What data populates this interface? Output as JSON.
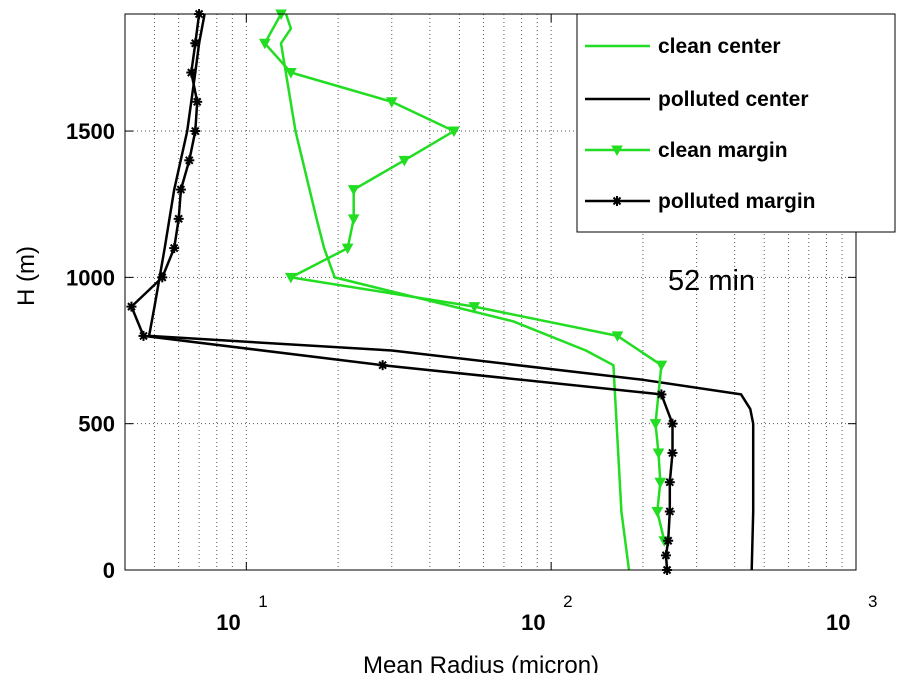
{
  "chart_data": {
    "type": "line",
    "title": "",
    "xlabel": "Mean Radius (micron)",
    "ylabel": "H (m)",
    "xscale": "log",
    "xlim": [
      4,
      1000
    ],
    "ylim": [
      0,
      1900
    ],
    "xticks": [
      {
        "value": 10,
        "base": "10",
        "exp": "1"
      },
      {
        "value": 100,
        "base": "10",
        "exp": "2"
      },
      {
        "value": 1000,
        "base": "10",
        "exp": "3"
      }
    ],
    "yticks": [
      0,
      500,
      1000,
      1500
    ],
    "grid": true,
    "legend_position": "top-right",
    "annotation": "52 min",
    "colors": {
      "clean": "#22dd22",
      "polluted": "#000000"
    },
    "series": [
      {
        "name": "clean center",
        "color": "#22dd22",
        "marker": "none",
        "x": [
          13.5,
          14,
          13,
          14.5,
          17,
          18,
          19.5,
          40,
          75,
          130,
          160,
          170,
          180
        ],
        "y": [
          1900,
          1850,
          1800,
          1500,
          1200,
          1100,
          1000,
          920,
          850,
          750,
          700,
          200,
          0
        ]
      },
      {
        "name": "polluted center",
        "color": "#000000",
        "marker": "none",
        "x": [
          7.3,
          7,
          6.8,
          6.4,
          5.8,
          5.4,
          5,
          4.8,
          30,
          200,
          420,
          450,
          460,
          460,
          455
        ],
        "y": [
          1900,
          1800,
          1700,
          1500,
          1300,
          1100,
          900,
          800,
          750,
          650,
          600,
          550,
          500,
          200,
          0
        ]
      },
      {
        "name": "clean margin",
        "color": "#22dd22",
        "marker": "triangle-down",
        "x": [
          13,
          11.5,
          14,
          30,
          48,
          33,
          22.5,
          22.5,
          21.5,
          14,
          56,
          165,
          230,
          220,
          225,
          228,
          223,
          235
        ],
        "y": [
          1900,
          1800,
          1700,
          1600,
          1500,
          1400,
          1300,
          1200,
          1100,
          1000,
          900,
          800,
          700,
          500,
          400,
          300,
          200,
          100
        ]
      },
      {
        "name": "polluted margin",
        "color": "#000000",
        "marker": "asterisk",
        "x": [
          7,
          6.8,
          6.6,
          6.9,
          6.8,
          6.5,
          6.1,
          6.0,
          5.8,
          5.3,
          4.2,
          4.6,
          28,
          230,
          250,
          250,
          245,
          245,
          242,
          238,
          240
        ],
        "y": [
          1900,
          1800,
          1700,
          1600,
          1500,
          1400,
          1300,
          1200,
          1100,
          1000,
          900,
          800,
          700,
          600,
          500,
          400,
          300,
          200,
          100,
          50,
          0
        ]
      }
    ]
  }
}
